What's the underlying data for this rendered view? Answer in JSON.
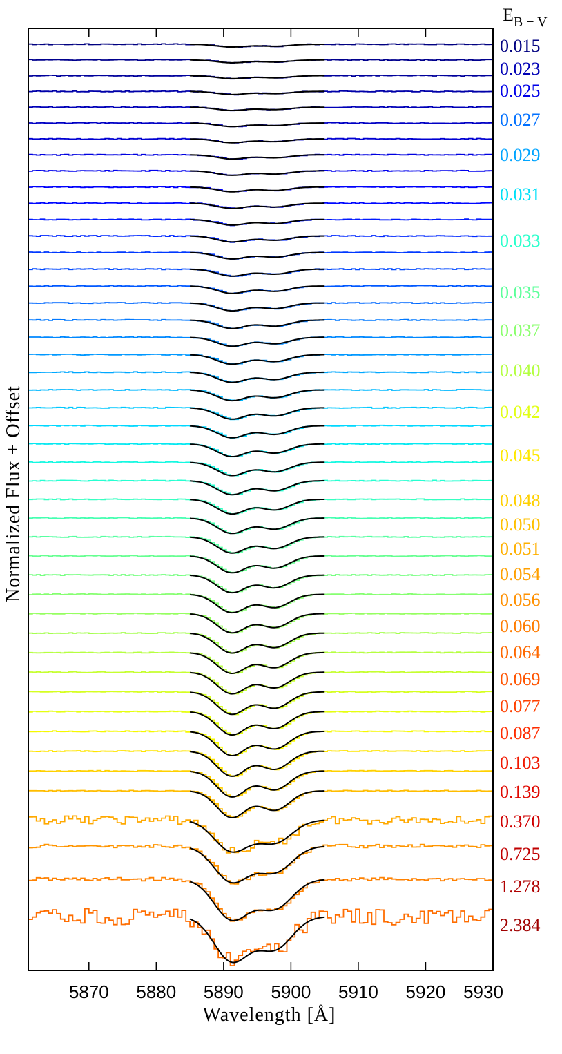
{
  "chart_data": {
    "type": "line",
    "xlabel": "Wavelength [Å]",
    "ylabel": "Normalized Flux + Offset",
    "legend_title": "E",
    "legend_title_sub": "B − V",
    "xlim": [
      5861,
      5930
    ],
    "xticks": [
      5870,
      5880,
      5890,
      5900,
      5910,
      5920,
      5930
    ],
    "fit_range": [
      5885,
      5905
    ],
    "lines": {
      "d2": 5891.2,
      "d1": 5897.6
    },
    "series": [
      {
        "ebv": 0.015,
        "color": "#000080"
      },
      {
        "ebv": 0.015,
        "color": "#00008e"
      },
      {
        "ebv": 0.015,
        "color": "#00009b"
      },
      {
        "ebv": 0.023,
        "color": "#0000a9"
      },
      {
        "ebv": 0.023,
        "color": "#0000b7"
      },
      {
        "ebv": 0.023,
        "color": "#0000c4"
      },
      {
        "ebv": 0.025,
        "color": "#0000d2"
      },
      {
        "ebv": 0.025,
        "color": "#0000e0"
      },
      {
        "ebv": 0.025,
        "color": "#0000ed"
      },
      {
        "ebv": 0.027,
        "color": "#0000fb"
      },
      {
        "ebv": 0.027,
        "color": "#0008ff"
      },
      {
        "ebv": 0.027,
        "color": "#0018ff"
      },
      {
        "ebv": 0.029,
        "color": "#0028ff"
      },
      {
        "ebv": 0.029,
        "color": "#0038ff"
      },
      {
        "ebv": 0.029,
        "color": "#0048ff"
      },
      {
        "ebv": 0.031,
        "color": "#0058ff"
      },
      {
        "ebv": 0.031,
        "color": "#0068ff"
      },
      {
        "ebv": 0.031,
        "color": "#0078ff"
      },
      {
        "ebv": 0.033,
        "color": "#0088ff"
      },
      {
        "ebv": 0.033,
        "color": "#0098ff"
      },
      {
        "ebv": 0.035,
        "color": "#00a8ff"
      },
      {
        "ebv": 0.035,
        "color": "#00b8ff"
      },
      {
        "ebv": 0.037,
        "color": "#00c8ff"
      },
      {
        "ebv": 0.037,
        "color": "#00d8ff"
      },
      {
        "ebv": 0.04,
        "color": "#06e8f1"
      },
      {
        "ebv": 0.04,
        "color": "#16f8e1"
      },
      {
        "ebv": 0.042,
        "color": "#26ffd1"
      },
      {
        "ebv": 0.042,
        "color": "#36ffc1"
      },
      {
        "ebv": 0.045,
        "color": "#46ffb1"
      },
      {
        "ebv": 0.045,
        "color": "#56ffa1"
      },
      {
        "ebv": 0.048,
        "color": "#66ff91"
      },
      {
        "ebv": 0.048,
        "color": "#76ff81"
      },
      {
        "ebv": 0.05,
        "color": "#86ff71"
      },
      {
        "ebv": 0.051,
        "color": "#96ff61"
      },
      {
        "ebv": 0.054,
        "color": "#a6ff51"
      },
      {
        "ebv": 0.056,
        "color": "#b6ff41"
      },
      {
        "ebv": 0.06,
        "color": "#c6ff31"
      },
      {
        "ebv": 0.064,
        "color": "#d6ff21"
      },
      {
        "ebv": 0.069,
        "color": "#e6ff11"
      },
      {
        "ebv": 0.077,
        "color": "#f6f900"
      },
      {
        "ebv": 0.087,
        "color": "#ffe500"
      },
      {
        "ebv": 0.103,
        "color": "#ffd100"
      },
      {
        "ebv": 0.139,
        "color": "#ffbd00"
      },
      {
        "ebv": 0.37,
        "color": "#ffa900"
      },
      {
        "ebv": 0.725,
        "color": "#ff9500"
      },
      {
        "ebv": 1.278,
        "color": "#ff8100"
      },
      {
        "ebv": 2.384,
        "color": "#ff6d00"
      }
    ],
    "ebv_labels": [
      {
        "text": "0.015",
        "color": "#000080"
      },
      {
        "text": "0.023",
        "color": "#0000b5"
      },
      {
        "text": "0.025",
        "color": "#0000e8"
      },
      {
        "text": "0.027",
        "color": "#0070ff"
      },
      {
        "text": "0.029",
        "color": "#00a4ff"
      },
      {
        "text": "0.031",
        "color": "#00e0f8"
      },
      {
        "text": "0.033",
        "color": "#2affcc"
      },
      {
        "text": "0.035",
        "color": "#5cff9a"
      },
      {
        "text": "0.037",
        "color": "#8aff6c"
      },
      {
        "text": "0.040",
        "color": "#b4ff42"
      },
      {
        "text": "0.042",
        "color": "#e2ff14"
      },
      {
        "text": "0.045",
        "color": "#ffe800"
      },
      {
        "text": "0.048",
        "color": "#ffd000"
      },
      {
        "text": "0.050",
        "color": "#ffc000"
      },
      {
        "text": "0.051",
        "color": "#ffb000"
      },
      {
        "text": "0.054",
        "color": "#ffa000"
      },
      {
        "text": "0.056",
        "color": "#ff9000"
      },
      {
        "text": "0.060",
        "color": "#ff7c00"
      },
      {
        "text": "0.064",
        "color": "#ff6800"
      },
      {
        "text": "0.069",
        "color": "#ff5400"
      },
      {
        "text": "0.077",
        "color": "#ff4000"
      },
      {
        "text": "0.087",
        "color": "#ff2c00"
      },
      {
        "text": "0.103",
        "color": "#f01800"
      },
      {
        "text": "0.139",
        "color": "#e00800"
      },
      {
        "text": "0.370",
        "color": "#d00000"
      },
      {
        "text": "0.725",
        "color": "#c00000"
      },
      {
        "text": "1.278",
        "color": "#b00000"
      },
      {
        "text": "2.384",
        "color": "#a00000"
      }
    ]
  }
}
